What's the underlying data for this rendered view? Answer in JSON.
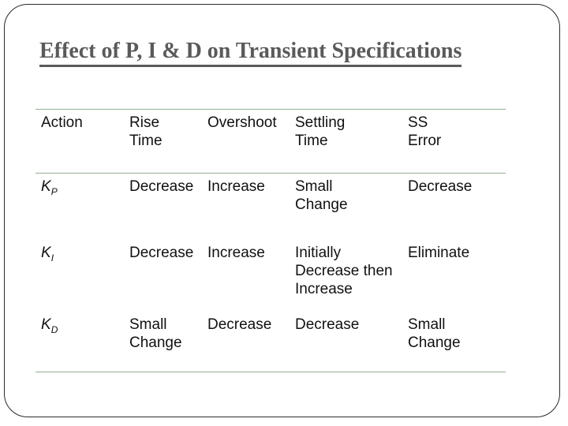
{
  "slide": {
    "title": "Effect of P, I & D on Transient Specifications"
  },
  "table": {
    "columns": [
      "Action",
      "Rise\nTime",
      "Overshoot",
      "Settling\nTime",
      "SS\nError"
    ],
    "rows": [
      {
        "action": {
          "base": "K",
          "sub": "P"
        },
        "rise_time": "Decrease",
        "overshoot": "Increase",
        "settling_time": "Small\nChange",
        "ss_error": "Decrease"
      },
      {
        "action": {
          "base": "K",
          "sub": "I"
        },
        "rise_time": "Decrease",
        "overshoot": "Increase",
        "settling_time": "Initially\nDecrease then\nIncrease",
        "ss_error": "Eliminate"
      },
      {
        "action": {
          "base": "K",
          "sub": "D"
        },
        "rise_time": "Small\nChange",
        "overshoot": "Decrease",
        "settling_time": "Decrease",
        "ss_error": "Small\nChange"
      }
    ]
  },
  "colors": {
    "title_text": "#5a5a5a",
    "table_rule_green": "#94ae94",
    "body_text": "#111111",
    "slide_border": "#2b2b2b",
    "background": "#ffffff"
  }
}
